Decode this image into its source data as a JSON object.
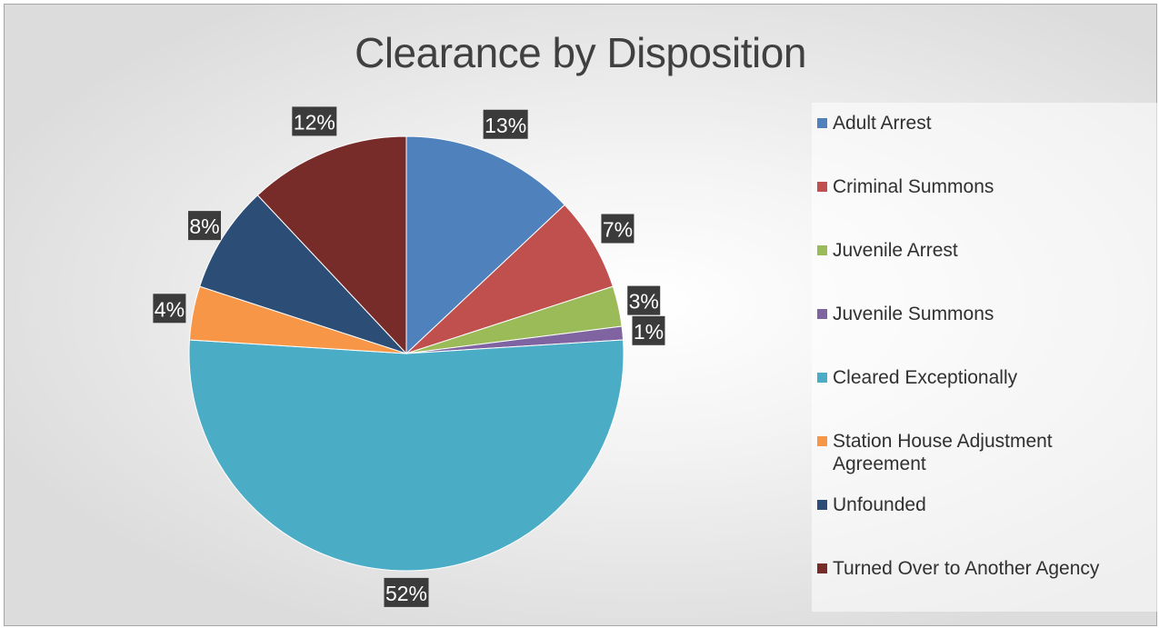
{
  "chart_data": {
    "type": "pie",
    "title": "Clearance by Disposition",
    "legend_position": "right",
    "categories": [
      "Adult Arrest",
      "Criminal Summons",
      "Juvenile Arrest",
      "Juvenile Summons",
      "Cleared Exceptionally",
      "Station House Adjustment Agreement",
      "Unfounded",
      "Turned Over to Another Agency"
    ],
    "values": [
      13,
      7,
      3,
      1,
      52,
      4,
      8,
      12
    ],
    "value_labels": [
      "13%",
      "7%",
      "3%",
      "1%",
      "52%",
      "4%",
      "8%",
      "12%"
    ],
    "colors": [
      "#4f81bd",
      "#c0504d",
      "#9bbb59",
      "#8064a2",
      "#4bacc6",
      "#f79646",
      "#2c4d75",
      "#772c2a"
    ]
  }
}
